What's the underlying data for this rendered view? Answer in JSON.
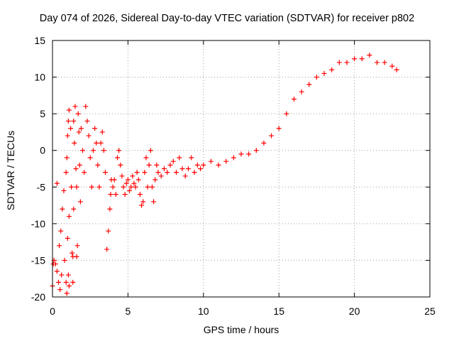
{
  "chart_data": {
    "type": "scatter",
    "title": "Day 074 of 2026, Sidereal Day-to-day VTEC variation (SDTVAR) for receiver p802",
    "xlabel": "GPS time / hours",
    "ylabel": "SDTVAR / TECUs",
    "xlim": [
      0,
      25
    ],
    "ylim": [
      -20,
      15
    ],
    "xticks": [
      0,
      5,
      10,
      15,
      20,
      25
    ],
    "yticks": [
      -20,
      -15,
      -10,
      -5,
      0,
      5,
      10,
      15
    ],
    "grid": true,
    "marker": "+",
    "color": "#ff0000",
    "series": [
      {
        "name": "SDTVAR",
        "points": [
          [
            0.0,
            -18.5
          ],
          [
            0.05,
            -15.5
          ],
          [
            0.1,
            -15
          ],
          [
            0.2,
            -15.5
          ],
          [
            0.3,
            -16.5
          ],
          [
            0.4,
            -18
          ],
          [
            0.5,
            -19
          ],
          [
            0.6,
            -17
          ],
          [
            0.3,
            -4.5
          ],
          [
            0.45,
            -13
          ],
          [
            0.55,
            -11
          ],
          [
            0.65,
            -8
          ],
          [
            0.75,
            -5.5
          ],
          [
            0.8,
            -15
          ],
          [
            0.9,
            -18
          ],
          [
            0.95,
            -19.5
          ],
          [
            0.9,
            -3
          ],
          [
            0.95,
            -1
          ],
          [
            1.0,
            2
          ],
          [
            1.05,
            4
          ],
          [
            1.0,
            -12
          ],
          [
            1.05,
            -17
          ],
          [
            1.1,
            -18.5
          ],
          [
            1.1,
            -9
          ],
          [
            1.1,
            5.5
          ],
          [
            1.2,
            3
          ],
          [
            1.25,
            -5
          ],
          [
            1.3,
            -14
          ],
          [
            1.35,
            -18
          ],
          [
            1.35,
            -14.5
          ],
          [
            1.4,
            -8
          ],
          [
            1.4,
            4
          ],
          [
            1.5,
            6
          ],
          [
            1.45,
            1
          ],
          [
            1.55,
            -2.5
          ],
          [
            1.6,
            -14.5
          ],
          [
            1.65,
            -13
          ],
          [
            1.6,
            -5
          ],
          [
            1.7,
            5
          ],
          [
            1.75,
            2.5
          ],
          [
            1.8,
            -2
          ],
          [
            1.85,
            -7
          ],
          [
            1.9,
            3
          ],
          [
            2.0,
            0
          ],
          [
            2.1,
            -3
          ],
          [
            2.2,
            6
          ],
          [
            2.3,
            4
          ],
          [
            2.4,
            2
          ],
          [
            2.5,
            -1
          ],
          [
            2.6,
            -5
          ],
          [
            2.7,
            0
          ],
          [
            2.8,
            3
          ],
          [
            2.9,
            1
          ],
          [
            3.0,
            -2
          ],
          [
            3.1,
            -5
          ],
          [
            3.2,
            1
          ],
          [
            3.3,
            2.5
          ],
          [
            3.4,
            0
          ],
          [
            3.5,
            -3
          ],
          [
            3.6,
            -13.5
          ],
          [
            3.7,
            -11
          ],
          [
            3.8,
            -8
          ],
          [
            3.85,
            -6
          ],
          [
            3.9,
            -4
          ],
          [
            4.0,
            -5
          ],
          [
            4.1,
            -4
          ],
          [
            4.2,
            -6
          ],
          [
            4.3,
            -1
          ],
          [
            4.4,
            0
          ],
          [
            4.5,
            -2
          ],
          [
            4.6,
            -3.5
          ],
          [
            4.7,
            -5
          ],
          [
            4.8,
            -6
          ],
          [
            4.9,
            -4.5
          ],
          [
            5.0,
            -4
          ],
          [
            5.1,
            -5.5
          ],
          [
            5.2,
            -5
          ],
          [
            5.3,
            -3.5
          ],
          [
            5.4,
            -4.5
          ],
          [
            5.5,
            -5
          ],
          [
            5.6,
            -3
          ],
          [
            5.7,
            -4
          ],
          [
            5.8,
            -6
          ],
          [
            5.9,
            -7.5
          ],
          [
            6.0,
            -7
          ],
          [
            6.1,
            -3
          ],
          [
            6.2,
            -1
          ],
          [
            6.3,
            -5
          ],
          [
            6.4,
            -2
          ],
          [
            6.5,
            0
          ],
          [
            6.6,
            -5
          ],
          [
            6.7,
            -7
          ],
          [
            6.8,
            -4
          ],
          [
            6.9,
            -2
          ],
          [
            7.0,
            -3
          ],
          [
            7.2,
            -3.5
          ],
          [
            7.4,
            -2.5
          ],
          [
            7.6,
            -3
          ],
          [
            7.8,
            -2
          ],
          [
            8.0,
            -1.5
          ],
          [
            8.2,
            -3
          ],
          [
            8.4,
            -1
          ],
          [
            8.6,
            -2.5
          ],
          [
            8.8,
            -3.5
          ],
          [
            9.0,
            -2.5
          ],
          [
            9.2,
            -1
          ],
          [
            9.4,
            -3
          ],
          [
            9.6,
            -2
          ],
          [
            9.8,
            -2.5
          ],
          [
            10.0,
            -2
          ],
          [
            10.5,
            -1.5
          ],
          [
            11.0,
            -2
          ],
          [
            11.5,
            -1.5
          ],
          [
            12.0,
            -1
          ],
          [
            12.5,
            -0.5
          ],
          [
            13.0,
            -0.5
          ],
          [
            13.5,
            0
          ],
          [
            14.0,
            1
          ],
          [
            14.5,
            2
          ],
          [
            15.0,
            3
          ],
          [
            15.5,
            5
          ],
          [
            16.0,
            7
          ],
          [
            16.5,
            8
          ],
          [
            17.0,
            9
          ],
          [
            17.5,
            10
          ],
          [
            18.0,
            10.5
          ],
          [
            18.5,
            11
          ],
          [
            19.0,
            12
          ],
          [
            19.5,
            12
          ],
          [
            20.0,
            12.5
          ],
          [
            20.5,
            12.5
          ],
          [
            21.0,
            13
          ],
          [
            21.5,
            12
          ],
          [
            22.0,
            12
          ],
          [
            22.5,
            11.5
          ],
          [
            22.8,
            11
          ]
        ]
      }
    ]
  }
}
